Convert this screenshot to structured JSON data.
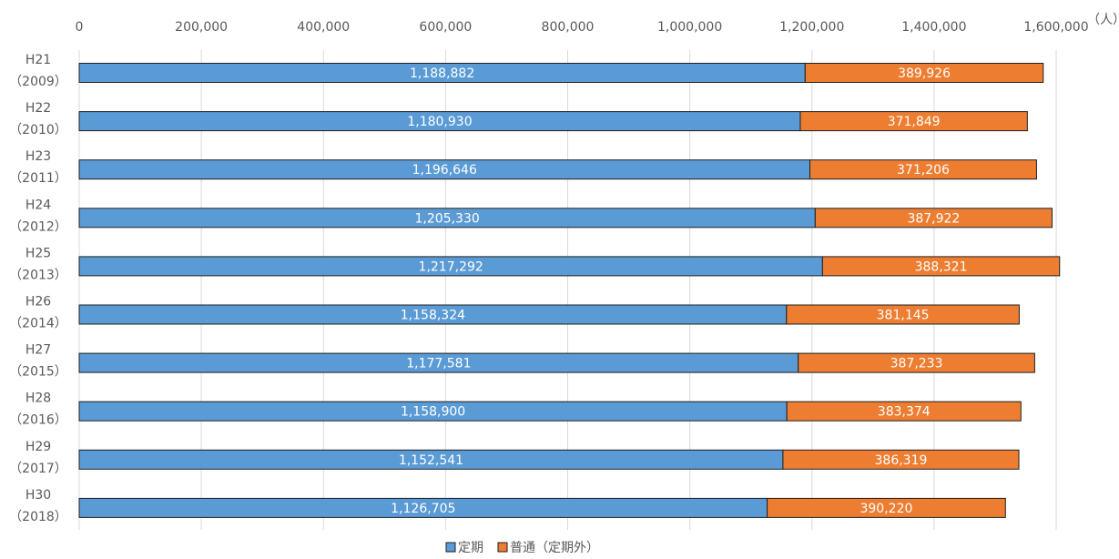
{
  "chart_data": {
    "type": "stacked_barh",
    "unit_label": "（人）",
    "categories": [
      [
        "H21",
        "（2009）"
      ],
      [
        "H22",
        "（2010）"
      ],
      [
        "H23",
        "（2011）"
      ],
      [
        "H24",
        "（2012）"
      ],
      [
        "H25",
        "（2013）"
      ],
      [
        "H26",
        "（2014）"
      ],
      [
        "H27",
        "（2015）"
      ],
      [
        "H28",
        "（2016）"
      ],
      [
        "H29",
        "（2017）"
      ],
      [
        "H30",
        "（2018）"
      ]
    ],
    "series": [
      {
        "name": "定期",
        "color": "#5b9bd5",
        "values": [
          1188882,
          1180930,
          1196646,
          1205330,
          1217292,
          1158324,
          1177581,
          1158900,
          1152541,
          1126705
        ],
        "value_labels": [
          "1,188,882",
          "1,180,930",
          "1,196,646",
          "1,205,330",
          "1,217,292",
          "1,158,324",
          "1,177,581",
          "1,158,900",
          "1,152,541",
          "1,126,705"
        ]
      },
      {
        "name": "普通（定期外）",
        "color": "#ed7d31",
        "values": [
          389926,
          371849,
          371206,
          387922,
          388321,
          381145,
          387233,
          383374,
          386319,
          390220
        ],
        "value_labels": [
          "389,926",
          "371,849",
          "371,206",
          "387,922",
          "388,321",
          "381,145",
          "387,233",
          "383,374",
          "386,319",
          "390,220"
        ]
      }
    ],
    "xlim": [
      0,
      1600000
    ],
    "xticks": [
      0,
      {
        "value": 200000,
        "label": "200,000"
      },
      {
        "value": 400000,
        "label": "400,000"
      },
      {
        "value": 600000,
        "label": "600,000"
      },
      {
        "value": 800000,
        "label": "800,000"
      },
      {
        "value": 1000000,
        "label": "1,000,000"
      },
      {
        "value": 1200000,
        "label": "1,200,000"
      },
      {
        "value": 1400000,
        "label": "1,400,000"
      },
      {
        "value": 1600000,
        "label": "1,600,000"
      }
    ],
    "grid": true,
    "legend": "bottom"
  }
}
